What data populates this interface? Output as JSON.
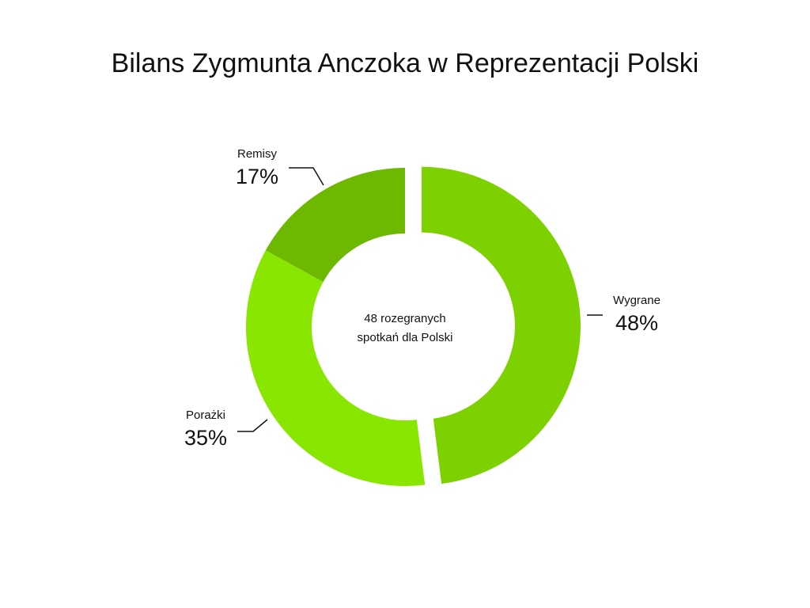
{
  "chart_data": {
    "type": "pie",
    "title": "Bilans Zygmunta Anczoka w Reprezentacji Polski",
    "categories": [
      "Wygrane",
      "Porażki",
      "Remisy"
    ],
    "values": [
      48,
      35,
      17
    ],
    "value_labels": [
      "48%",
      "35%",
      "17%"
    ],
    "colors": [
      "#7ed100",
      "#88e600",
      "#6db800"
    ],
    "center_text": [
      "48 rozegranych",
      "spotkań dla Polski"
    ]
  }
}
